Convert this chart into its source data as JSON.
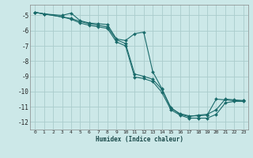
{
  "xlabel": "Humidex (Indice chaleur)",
  "bg_color": "#cce8e8",
  "grid_color": "#aacccc",
  "line_color": "#1a6b6b",
  "xlim": [
    -0.5,
    23.5
  ],
  "ylim": [
    -12.5,
    -4.3
  ],
  "yticks": [
    -12,
    -11,
    -10,
    -9,
    -8,
    -7,
    -6,
    -5
  ],
  "xticks": [
    0,
    1,
    2,
    3,
    4,
    5,
    6,
    7,
    8,
    9,
    10,
    11,
    12,
    13,
    14,
    15,
    16,
    17,
    18,
    19,
    20,
    21,
    22,
    23
  ],
  "series1_x": [
    0,
    1,
    3,
    4,
    5,
    6,
    7,
    8,
    9,
    10,
    11,
    12,
    13,
    14,
    15,
    16,
    17,
    18,
    19,
    20,
    21,
    22,
    23
  ],
  "series1_y": [
    -4.8,
    -4.9,
    -5.0,
    -4.85,
    -5.35,
    -5.5,
    -5.55,
    -5.6,
    -6.55,
    -6.65,
    -6.2,
    -6.1,
    -8.7,
    -9.8,
    -11.1,
    -11.45,
    -11.6,
    -11.6,
    -11.55,
    -10.5,
    -10.55,
    -10.6,
    -10.6
  ],
  "series2_x": [
    0,
    1,
    3,
    4,
    5,
    6,
    7,
    8,
    9,
    10,
    11,
    12,
    13,
    14,
    15,
    16,
    17,
    18,
    19,
    20,
    21,
    22,
    23
  ],
  "series2_y": [
    -4.8,
    -4.9,
    -5.1,
    -5.2,
    -5.4,
    -5.55,
    -5.65,
    -5.75,
    -6.6,
    -6.85,
    -8.85,
    -9.0,
    -9.2,
    -9.85,
    -11.05,
    -11.5,
    -11.65,
    -11.55,
    -11.5,
    -11.2,
    -10.5,
    -10.55,
    -10.6
  ],
  "series3_x": [
    0,
    1,
    3,
    4,
    5,
    6,
    7,
    8,
    9,
    10,
    11,
    12,
    13,
    14,
    15,
    16,
    17,
    18,
    19,
    20,
    21,
    22,
    23
  ],
  "series3_y": [
    -4.8,
    -4.9,
    -5.1,
    -5.25,
    -5.5,
    -5.65,
    -5.75,
    -5.85,
    -6.75,
    -7.0,
    -9.05,
    -9.15,
    -9.35,
    -10.05,
    -11.2,
    -11.55,
    -11.75,
    -11.75,
    -11.75,
    -11.5,
    -10.75,
    -10.65,
    -10.65
  ]
}
